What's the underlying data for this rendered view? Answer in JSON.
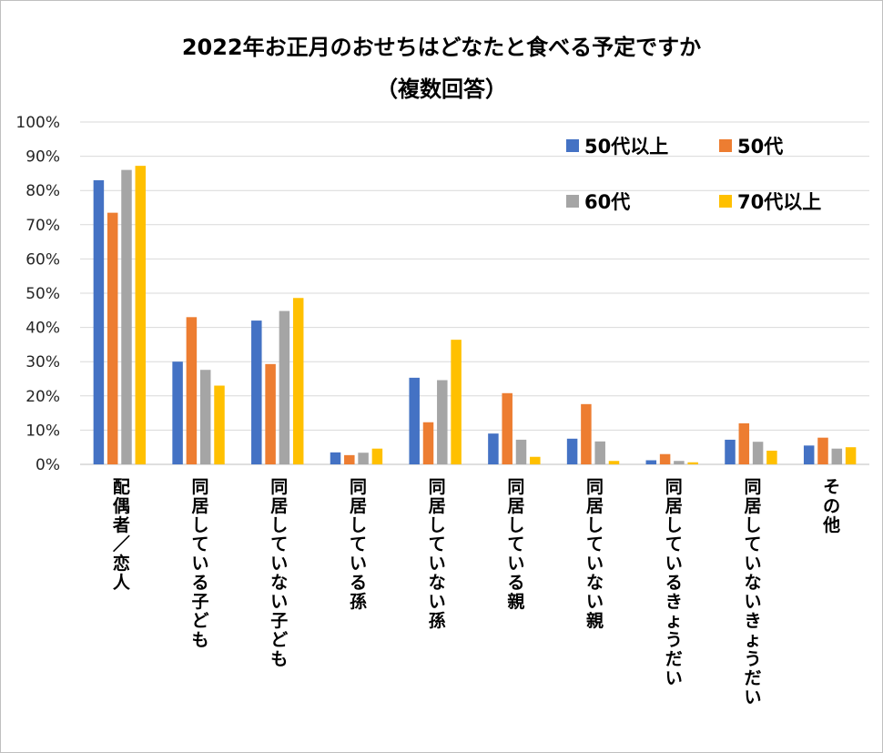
{
  "chart_data": {
    "type": "bar",
    "title": "2022年お正月のおせちはどなたと食べる予定ですか",
    "subtitle": "（複数回答）",
    "xlabel": "",
    "ylabel": "",
    "ylim": [
      0,
      100
    ],
    "y_ticks": [
      "0%",
      "10%",
      "20%",
      "30%",
      "40%",
      "50%",
      "60%",
      "70%",
      "80%",
      "90%",
      "100%"
    ],
    "grid": true,
    "legend_position": "top-right",
    "categories": [
      "配偶者／恋人",
      "同居している子ども",
      "同居していない子ども",
      "同居している孫",
      "同居していない孫",
      "同居している親",
      "同居していない親",
      "同居しているきょうだい",
      "同居していないきょうだい",
      "その他"
    ],
    "series": [
      {
        "name": "50代以上",
        "color": "#4472c4",
        "values": [
          83,
          30,
          42,
          3.5,
          25.3,
          9,
          7.5,
          1.2,
          7.2,
          5.5
        ]
      },
      {
        "name": "50代",
        "color": "#ed7d31",
        "values": [
          73.5,
          43,
          29.3,
          2.7,
          12.3,
          20.8,
          17.6,
          3,
          12,
          7.8
        ]
      },
      {
        "name": "60代",
        "color": "#a5a5a5",
        "values": [
          86,
          27.6,
          44.8,
          3.4,
          24.6,
          7.2,
          6.7,
          1,
          6.6,
          4.6
        ]
      },
      {
        "name": "70代以上",
        "color": "#ffc000",
        "values": [
          87.2,
          23,
          48.6,
          4.6,
          36.4,
          2.2,
          1,
          0.6,
          4,
          5
        ]
      }
    ]
  }
}
